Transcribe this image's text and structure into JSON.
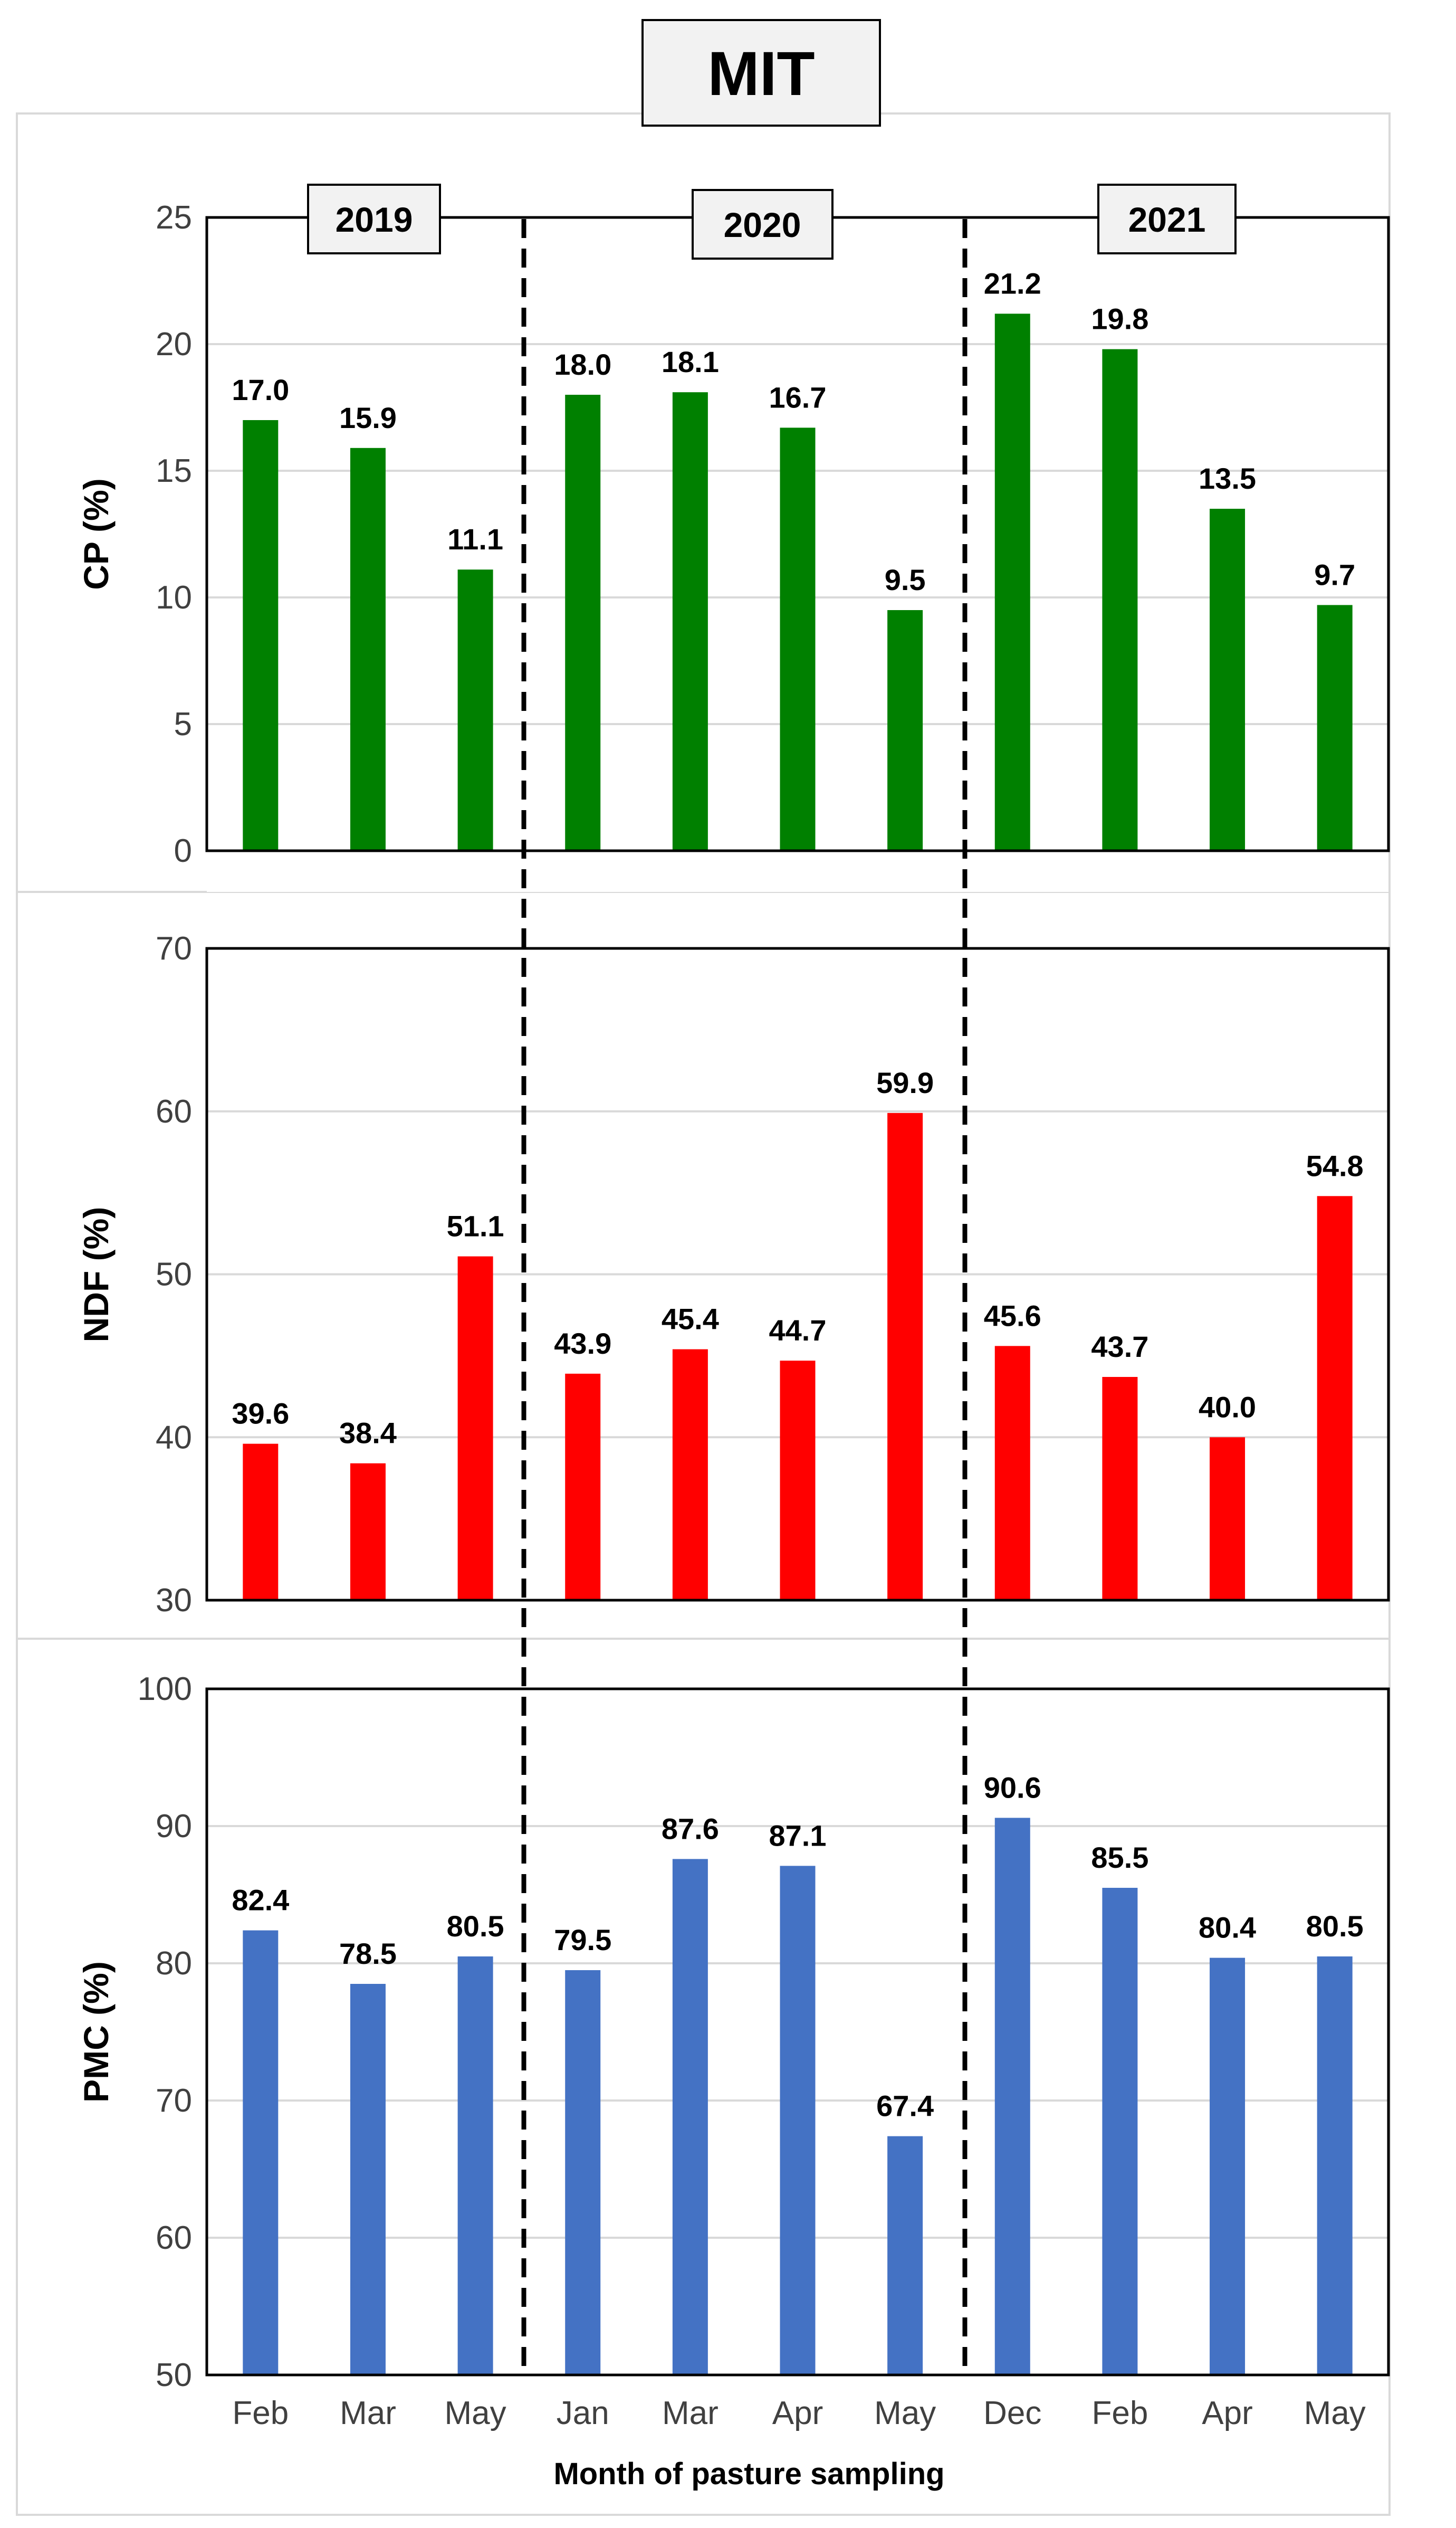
{
  "title": "MIT",
  "years": [
    "2019",
    "2020",
    "2021"
  ],
  "chart_data": [
    {
      "type": "bar",
      "id": "cp",
      "ylabel": "CP (%)",
      "ylim": [
        0,
        25
      ],
      "yticks": [
        0,
        5,
        10,
        15,
        20,
        25
      ],
      "color": "#008000",
      "categories": [
        "Feb",
        "Mar",
        "May",
        "Jan",
        "Mar",
        "Apr",
        "May",
        "Dec",
        "Feb",
        "Apr",
        "May"
      ],
      "values": [
        17.0,
        15.9,
        11.1,
        18.0,
        18.1,
        16.7,
        9.5,
        21.2,
        19.8,
        13.5,
        9.7
      ],
      "labels": [
        "17.0",
        "15.9",
        "11.1",
        "18.0",
        "18.1",
        "16.7",
        "9.5",
        "21.2",
        "19.8",
        "13.5",
        "9.7"
      ],
      "grid": true
    },
    {
      "type": "bar",
      "id": "ndf",
      "ylabel": "NDF (%)",
      "ylim": [
        30,
        70
      ],
      "yticks": [
        30,
        40,
        50,
        60,
        70
      ],
      "color": "#ff0000",
      "categories": [
        "Feb",
        "Mar",
        "May",
        "Jan",
        "Mar",
        "Apr",
        "May",
        "Dec",
        "Feb",
        "Apr",
        "May"
      ],
      "values": [
        39.6,
        38.4,
        51.1,
        43.9,
        45.4,
        44.7,
        59.9,
        45.6,
        43.7,
        40.0,
        54.8
      ],
      "labels": [
        "39.6",
        "38.4",
        "51.1",
        "43.9",
        "45.4",
        "44.7",
        "59.9",
        "45.6",
        "43.7",
        "40.0",
        "54.8"
      ],
      "grid": true
    },
    {
      "type": "bar",
      "id": "pmc",
      "ylabel": "PMC (%)",
      "ylim": [
        50,
        100
      ],
      "yticks": [
        50,
        60,
        70,
        80,
        90,
        100
      ],
      "color": "#4472c4",
      "categories": [
        "Feb",
        "Mar",
        "May",
        "Jan",
        "Mar",
        "Apr",
        "May",
        "Dec",
        "Feb",
        "Apr",
        "May"
      ],
      "values": [
        82.4,
        78.5,
        80.5,
        79.5,
        87.6,
        87.1,
        67.4,
        90.6,
        85.5,
        80.4,
        80.5
      ],
      "labels": [
        "82.4",
        "78.5",
        "80.5",
        "79.5",
        "87.6",
        "87.1",
        "67.4",
        "90.6",
        "85.5",
        "80.4",
        "80.5"
      ],
      "xlabel": "Month of pasture sampling",
      "grid": true
    }
  ]
}
